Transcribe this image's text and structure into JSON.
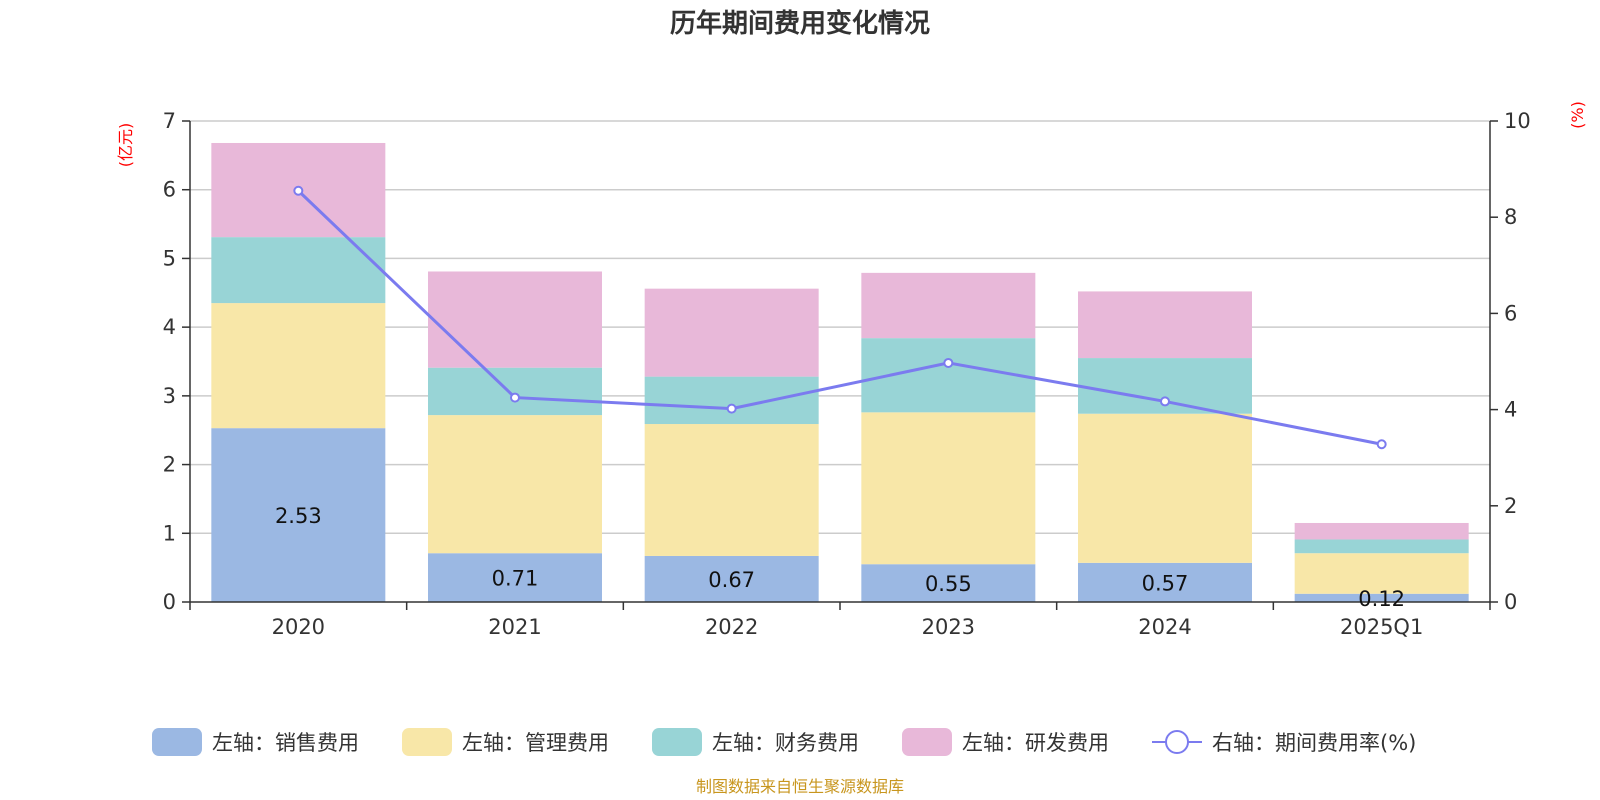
{
  "chart_data": {
    "type": "bar",
    "title": "历年期间费用变化情况",
    "categories": [
      "2020",
      "2021",
      "2022",
      "2023",
      "2024",
      "2025Q1"
    ],
    "left_axis": {
      "unit": "(亿元)",
      "ylim": [
        0,
        7
      ],
      "ticks": [
        "0",
        "1",
        "2",
        "3",
        "4",
        "5",
        "6",
        "7"
      ]
    },
    "right_axis": {
      "unit": "(%)",
      "ylim": [
        0,
        10
      ],
      "ticks": [
        "0",
        "2",
        "4",
        "6",
        "8",
        "10"
      ]
    },
    "series": [
      {
        "name": "左轴：销售费用",
        "type": "bar",
        "axis": "left",
        "color": "#9bb8e3",
        "values": [
          2.53,
          0.71,
          0.67,
          0.55,
          0.57,
          0.12
        ],
        "labels": [
          "2.53",
          "0.71",
          "0.67",
          "0.55",
          "0.57",
          "0.12"
        ]
      },
      {
        "name": "左轴：管理费用",
        "type": "bar",
        "axis": "left",
        "color": "#f8e7a8",
        "values": [
          1.82,
          2.01,
          1.92,
          2.21,
          2.17,
          0.59
        ]
      },
      {
        "name": "左轴：财务费用",
        "type": "bar",
        "axis": "left",
        "color": "#98d4d6",
        "values": [
          0.96,
          0.69,
          0.69,
          1.08,
          0.81,
          0.2
        ]
      },
      {
        "name": "左轴：研发费用",
        "type": "bar",
        "axis": "left",
        "color": "#e8b8d9",
        "values": [
          1.37,
          1.4,
          1.28,
          0.95,
          0.97,
          0.24
        ]
      },
      {
        "name": "右轴：期间费用率(%)",
        "type": "line",
        "axis": "right",
        "color": "#7b7bef",
        "values": [
          8.55,
          4.25,
          4.02,
          4.97,
          4.17,
          3.28
        ]
      }
    ],
    "grid": true,
    "legend_position": "bottom"
  },
  "source": "制图数据来自恒生聚源数据库"
}
